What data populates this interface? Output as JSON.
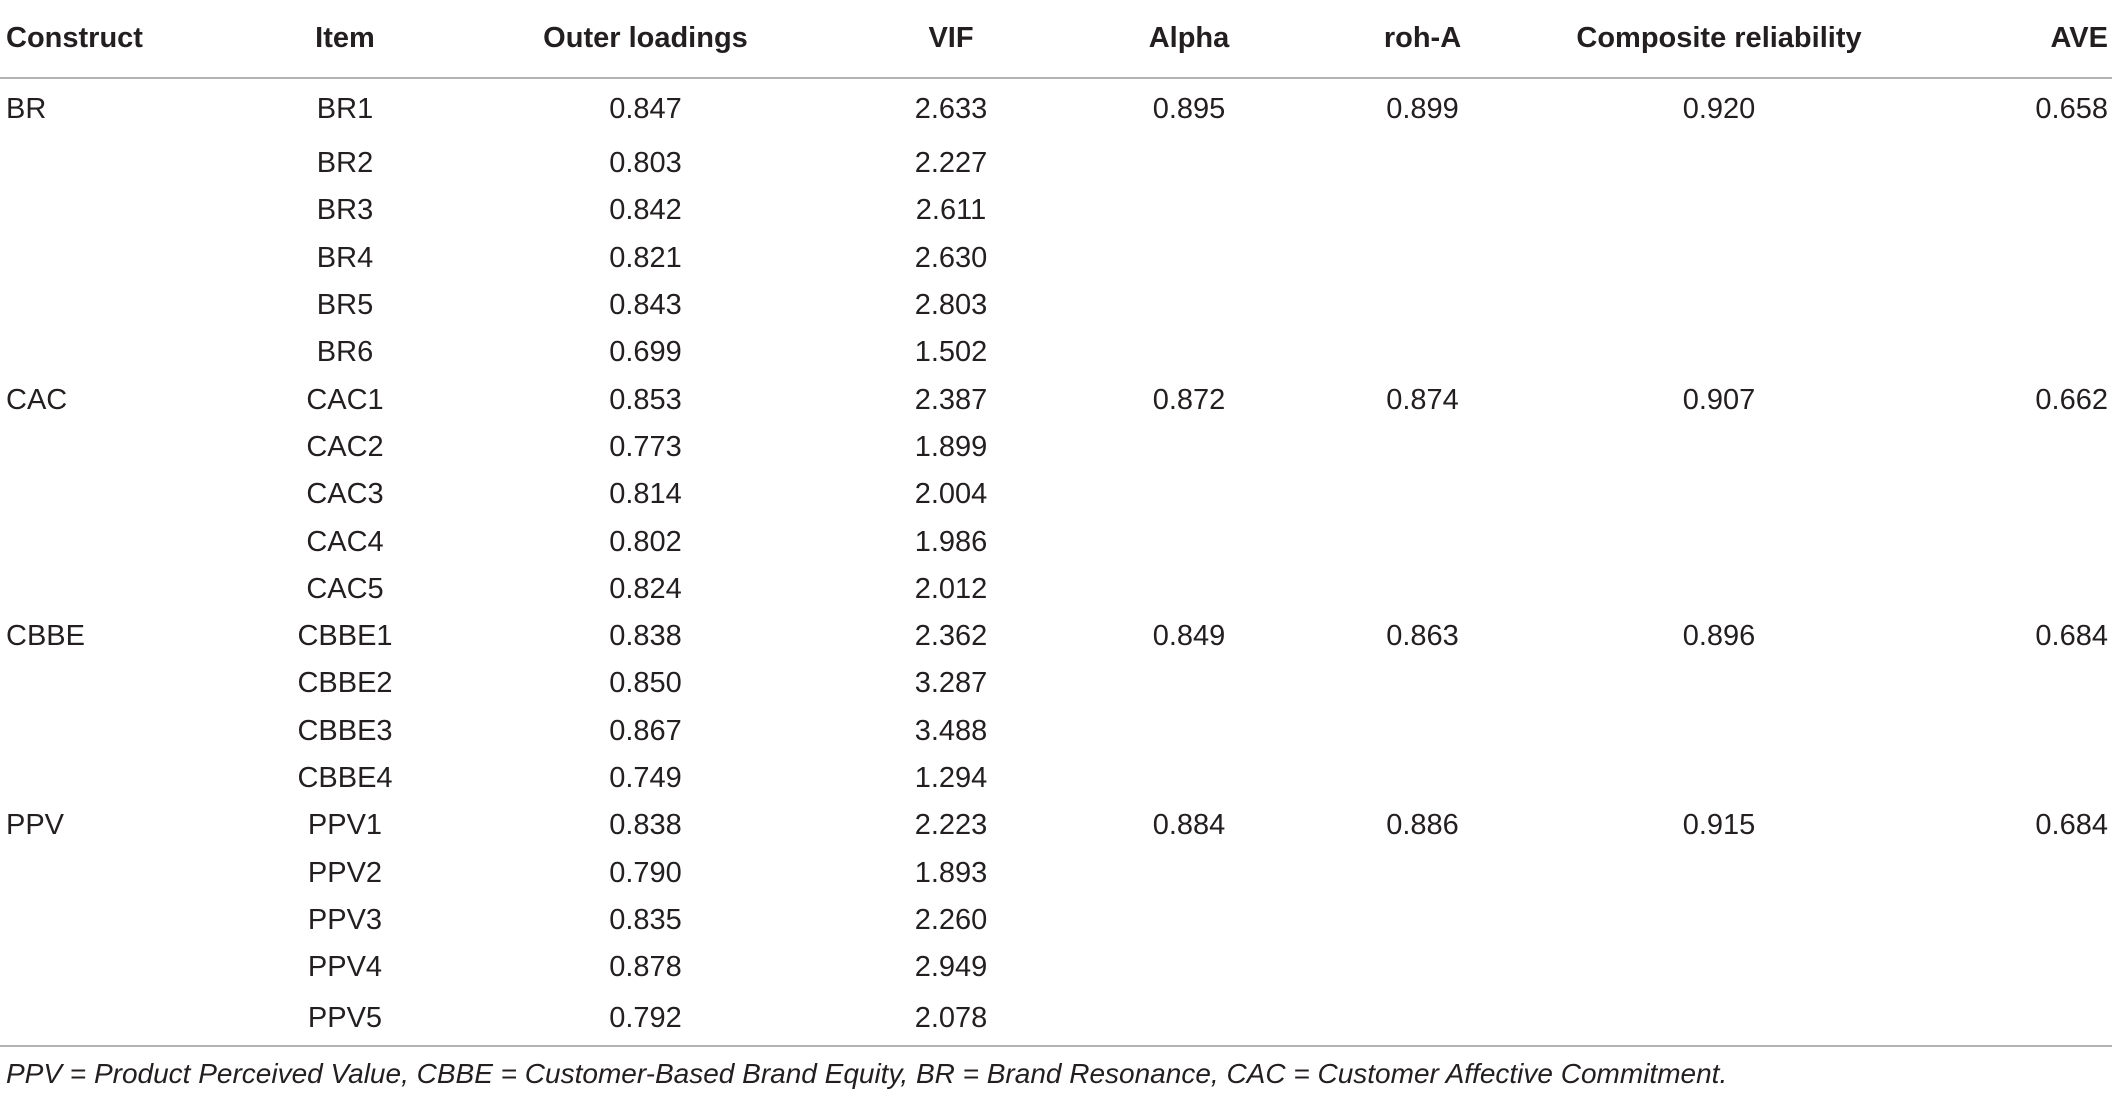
{
  "table": {
    "headers": {
      "construct": "Construct",
      "item": "Item",
      "outer": "Outer loadings",
      "vif": "VIF",
      "alpha": "Alpha",
      "roh": "roh-A",
      "cr": "Composite reliability",
      "ave": "AVE"
    },
    "rows": [
      {
        "construct": "BR",
        "item": "BR1",
        "outer": "0.847",
        "vif": "2.633",
        "alpha": "0.895",
        "roh": "0.899",
        "cr": "0.920",
        "ave": "0.658"
      },
      {
        "construct": "",
        "item": "BR2",
        "outer": "0.803",
        "vif": "2.227",
        "alpha": "",
        "roh": "",
        "cr": "",
        "ave": ""
      },
      {
        "construct": "",
        "item": "BR3",
        "outer": "0.842",
        "vif": "2.611",
        "alpha": "",
        "roh": "",
        "cr": "",
        "ave": ""
      },
      {
        "construct": "",
        "item": "BR4",
        "outer": "0.821",
        "vif": "2.630",
        "alpha": "",
        "roh": "",
        "cr": "",
        "ave": ""
      },
      {
        "construct": "",
        "item": "BR5",
        "outer": "0.843",
        "vif": "2.803",
        "alpha": "",
        "roh": "",
        "cr": "",
        "ave": ""
      },
      {
        "construct": "",
        "item": "BR6",
        "outer": "0.699",
        "vif": "1.502",
        "alpha": "",
        "roh": "",
        "cr": "",
        "ave": ""
      },
      {
        "construct": "CAC",
        "item": "CAC1",
        "outer": "0.853",
        "vif": "2.387",
        "alpha": "0.872",
        "roh": "0.874",
        "cr": "0.907",
        "ave": "0.662"
      },
      {
        "construct": "",
        "item": "CAC2",
        "outer": "0.773",
        "vif": "1.899",
        "alpha": "",
        "roh": "",
        "cr": "",
        "ave": ""
      },
      {
        "construct": "",
        "item": "CAC3",
        "outer": "0.814",
        "vif": "2.004",
        "alpha": "",
        "roh": "",
        "cr": "",
        "ave": ""
      },
      {
        "construct": "",
        "item": "CAC4",
        "outer": "0.802",
        "vif": "1.986",
        "alpha": "",
        "roh": "",
        "cr": "",
        "ave": ""
      },
      {
        "construct": "",
        "item": "CAC5",
        "outer": "0.824",
        "vif": "2.012",
        "alpha": "",
        "roh": "",
        "cr": "",
        "ave": ""
      },
      {
        "construct": "CBBE",
        "item": "CBBE1",
        "outer": "0.838",
        "vif": "2.362",
        "alpha": "0.849",
        "roh": "0.863",
        "cr": "0.896",
        "ave": "0.684"
      },
      {
        "construct": "",
        "item": "CBBE2",
        "outer": "0.850",
        "vif": "3.287",
        "alpha": "",
        "roh": "",
        "cr": "",
        "ave": ""
      },
      {
        "construct": "",
        "item": "CBBE3",
        "outer": "0.867",
        "vif": "3.488",
        "alpha": "",
        "roh": "",
        "cr": "",
        "ave": ""
      },
      {
        "construct": "",
        "item": "CBBE4",
        "outer": "0.749",
        "vif": "1.294",
        "alpha": "",
        "roh": "",
        "cr": "",
        "ave": ""
      },
      {
        "construct": "PPV",
        "item": "PPV1",
        "outer": "0.838",
        "vif": "2.223",
        "alpha": "0.884",
        "roh": "0.886",
        "cr": "0.915",
        "ave": "0.684"
      },
      {
        "construct": "",
        "item": "PPV2",
        "outer": "0.790",
        "vif": "1.893",
        "alpha": "",
        "roh": "",
        "cr": "",
        "ave": ""
      },
      {
        "construct": "",
        "item": "PPV3",
        "outer": "0.835",
        "vif": "2.260",
        "alpha": "",
        "roh": "",
        "cr": "",
        "ave": ""
      },
      {
        "construct": "",
        "item": "PPV4",
        "outer": "0.878",
        "vif": "2.949",
        "alpha": "",
        "roh": "",
        "cr": "",
        "ave": ""
      },
      {
        "construct": "",
        "item": "PPV5",
        "outer": "0.792",
        "vif": "2.078",
        "alpha": "",
        "roh": "",
        "cr": "",
        "ave": ""
      }
    ]
  },
  "footnote": "PPV = Product Perceived Value, CBBE = Customer-Based Brand Equity, BR = Brand Resonance, CAC = Customer Affective Commitment."
}
